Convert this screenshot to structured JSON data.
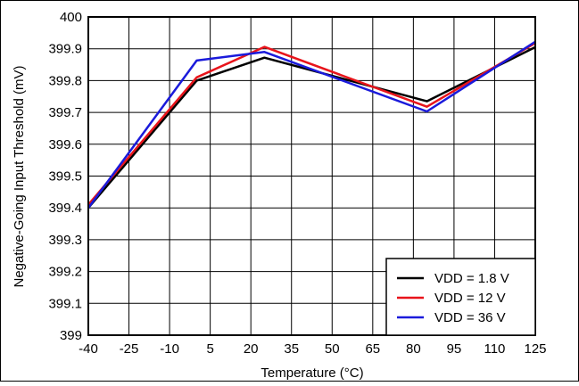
{
  "chart_data": {
    "type": "line",
    "xlabel": "Temperature (°C)",
    "ylabel": "Negative-Going Input Threshold (mV)",
    "xlim": [
      -40,
      125
    ],
    "ylim": [
      399,
      400
    ],
    "x_ticks": [
      "-40",
      "-25",
      "-10",
      "5",
      "20",
      "35",
      "50",
      "65",
      "80",
      "95",
      "110",
      "125"
    ],
    "y_ticks": [
      "399",
      "399.1",
      "399.2",
      "399.3",
      "399.4",
      "399.5",
      "399.6",
      "399.7",
      "399.8",
      "399.9",
      "400"
    ],
    "grid": true,
    "legend_position": "bottom-right",
    "series": [
      {
        "name": "VDD = 1.8 V",
        "color": "#000000",
        "x": [
          -40,
          0,
          25,
          85,
          125
        ],
        "y": [
          399.4,
          399.8,
          399.872,
          399.735,
          399.905
        ]
      },
      {
        "name": "VDD = 12 V",
        "color": "#e8141b",
        "x": [
          -40,
          0,
          25,
          85,
          125
        ],
        "y": [
          399.41,
          399.81,
          399.906,
          399.718,
          399.918
        ]
      },
      {
        "name": "VDD = 36 V",
        "color": "#1a1adb",
        "x": [
          -40,
          0,
          25,
          85,
          125
        ],
        "y": [
          399.4,
          399.863,
          399.89,
          399.703,
          399.922
        ]
      }
    ]
  }
}
